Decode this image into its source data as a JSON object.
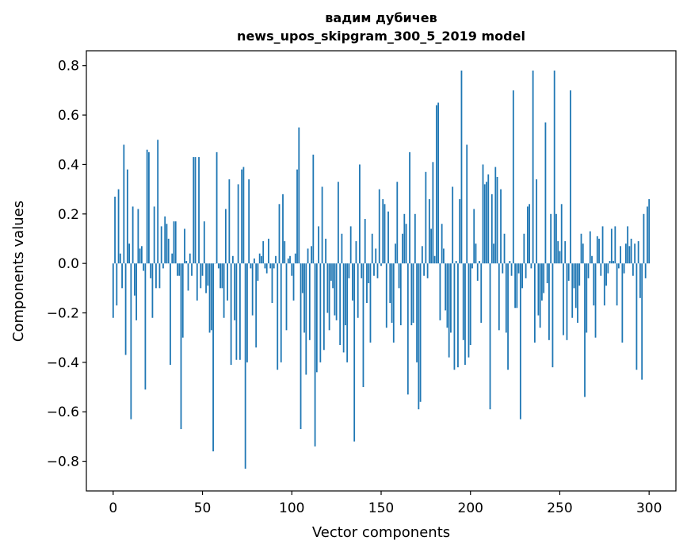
{
  "chart_data": {
    "type": "bar",
    "title": "вадим дубичев",
    "subtitle": "news_upos_skipgram_300_5_2019 model",
    "xlabel": "Vector components",
    "ylabel": "Components values",
    "xlim": [
      -15,
      315
    ],
    "ylim": [
      -0.92,
      0.86
    ],
    "x_ticks": [
      0,
      50,
      100,
      150,
      200,
      250,
      300
    ],
    "x_tick_labels": [
      "0",
      "50",
      "100",
      "150",
      "200",
      "250",
      "300"
    ],
    "y_ticks": [
      -0.8,
      -0.6,
      -0.4,
      -0.2,
      0.0,
      0.2,
      0.4,
      0.6,
      0.8
    ],
    "y_tick_labels": [
      "−0.8",
      "−0.6",
      "−0.4",
      "−0.2",
      "0.0",
      "0.2",
      "0.4",
      "0.6",
      "0.8"
    ],
    "bar_color": "#1f77b4",
    "series": [
      {
        "name": "components",
        "x_start": 0,
        "values": [
          -0.22,
          0.27,
          -0.17,
          0.3,
          0.04,
          -0.1,
          0.48,
          -0.37,
          0.38,
          0.08,
          -0.63,
          0.23,
          -0.13,
          -0.23,
          0.22,
          0.06,
          0.07,
          -0.03,
          -0.51,
          0.46,
          0.45,
          -0.06,
          -0.22,
          0.23,
          -0.1,
          0.5,
          -0.1,
          0.15,
          -0.02,
          0.19,
          0.16,
          0.1,
          -0.41,
          0.04,
          0.17,
          0.17,
          -0.05,
          -0.05,
          -0.67,
          -0.3,
          0.14,
          0.01,
          -0.11,
          0.04,
          -0.05,
          0.43,
          0.43,
          -0.15,
          0.43,
          -0.1,
          -0.05,
          0.17,
          -0.12,
          -0.09,
          -0.28,
          -0.27,
          -0.76,
          0.0,
          0.45,
          -0.02,
          -0.1,
          -0.1,
          -0.22,
          0.22,
          -0.15,
          0.34,
          -0.41,
          0.03,
          -0.23,
          -0.39,
          0.32,
          -0.39,
          0.38,
          0.39,
          -0.83,
          -0.4,
          0.34,
          -0.02,
          -0.21,
          0.02,
          -0.34,
          -0.07,
          0.04,
          0.03,
          0.09,
          -0.02,
          -0.04,
          0.1,
          -0.02,
          -0.16,
          -0.02,
          0.03,
          -0.43,
          0.24,
          -0.4,
          0.28,
          0.09,
          -0.27,
          0.02,
          0.03,
          -0.05,
          -0.15,
          0.04,
          0.38,
          0.55,
          -0.67,
          -0.12,
          -0.28,
          -0.45,
          0.06,
          -0.31,
          0.07,
          0.44,
          -0.74,
          -0.44,
          0.15,
          -0.4,
          0.31,
          -0.35,
          0.1,
          -0.2,
          -0.27,
          -0.07,
          -0.1,
          -0.21,
          -0.23,
          0.33,
          -0.33,
          0.12,
          -0.36,
          -0.25,
          -0.4,
          -0.06,
          0.15,
          -0.15,
          -0.72,
          0.09,
          -0.22,
          0.4,
          -0.06,
          -0.5,
          0.18,
          -0.16,
          -0.08,
          -0.32,
          0.12,
          -0.05,
          0.06,
          -0.06,
          0.3,
          -0.01,
          0.26,
          0.24,
          -0.26,
          0.21,
          -0.16,
          -0.24,
          -0.32,
          0.08,
          0.33,
          -0.1,
          -0.25,
          0.12,
          0.2,
          0.16,
          -0.53,
          0.45,
          -0.25,
          -0.24,
          0.2,
          -0.4,
          -0.59,
          -0.56,
          0.07,
          -0.05,
          0.37,
          -0.06,
          0.26,
          0.14,
          0.41,
          0.03,
          0.64,
          0.65,
          -0.23,
          0.16,
          0.06,
          -0.19,
          -0.26,
          -0.38,
          -0.28,
          0.31,
          -0.43,
          0.01,
          -0.42,
          0.26,
          0.78,
          -0.31,
          -0.41,
          0.48,
          -0.38,
          -0.33,
          -0.02,
          0.22,
          0.08,
          -0.07,
          0.01,
          -0.24,
          0.4,
          0.32,
          0.33,
          0.36,
          -0.59,
          0.28,
          0.08,
          0.39,
          0.35,
          -0.27,
          0.3,
          -0.04,
          0.12,
          -0.28,
          -0.43,
          0.01,
          -0.05,
          0.7,
          -0.18,
          -0.18,
          -0.04,
          -0.63,
          -0.1,
          0.12,
          -0.06,
          0.23,
          0.24,
          -0.02,
          0.78,
          -0.32,
          0.34,
          -0.21,
          -0.26,
          -0.15,
          -0.12,
          0.57,
          -0.08,
          -0.31,
          0.2,
          -0.42,
          0.78,
          0.2,
          0.09,
          0.05,
          0.24,
          -0.29,
          0.09,
          -0.31,
          -0.07,
          0.7,
          -0.22,
          -0.1,
          -0.18,
          -0.24,
          -0.09,
          0.12,
          0.08,
          -0.54,
          -0.28,
          -0.06,
          0.13,
          0.03,
          -0.17,
          -0.3,
          0.11,
          0.1,
          -0.05,
          0.15,
          -0.17,
          -0.09,
          -0.04,
          0.01,
          0.14,
          0.01,
          0.15,
          -0.17,
          -0.02,
          0.07,
          -0.32,
          -0.04,
          0.08,
          0.15,
          0.07,
          0.1,
          -0.05,
          0.08,
          -0.43,
          0.09,
          -0.14,
          -0.47,
          0.2,
          -0.06,
          0.23,
          0.26
        ]
      }
    ]
  }
}
